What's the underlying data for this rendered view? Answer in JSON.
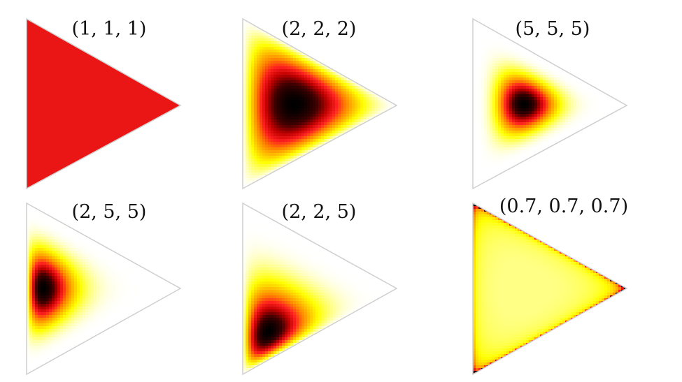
{
  "panels": [
    {
      "title": "(1, 1, 1)",
      "alpha": [
        1,
        1,
        1
      ]
    },
    {
      "title": "(2, 2, 2)",
      "alpha": [
        2,
        2,
        2
      ]
    },
    {
      "title": "(5, 5, 5)",
      "alpha": [
        5,
        5,
        5
      ]
    },
    {
      "title": "(2, 5, 5)",
      "alpha": [
        2,
        5,
        5
      ]
    },
    {
      "title": "(2, 2, 5)",
      "alpha": [
        2,
        2,
        5
      ]
    },
    {
      "title": "(0.7, 0.7, 0.7)",
      "alpha": [
        0.7,
        0.7,
        0.7
      ]
    }
  ],
  "colors": {
    "outline": "#cfcfcf",
    "ramp": [
      "#ffffff",
      "#ffff80",
      "#ffff00",
      "#ffc000",
      "#ff8000",
      "#ff2020",
      "#c00000",
      "#400000",
      "#000000"
    ]
  }
}
